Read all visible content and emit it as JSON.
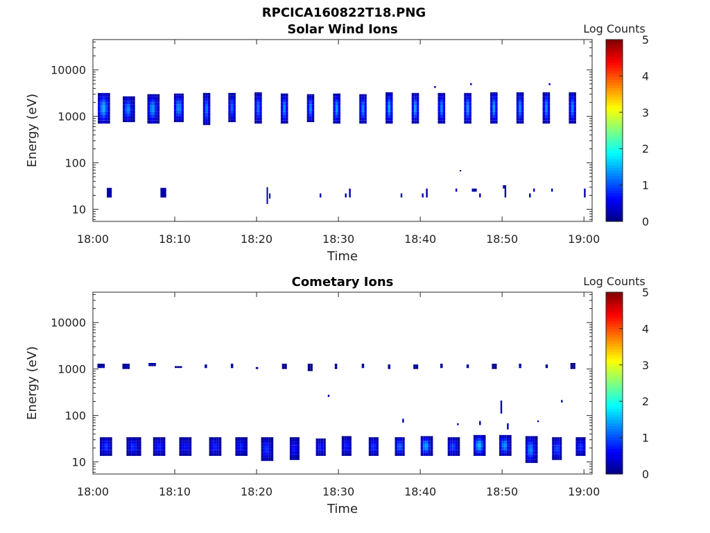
{
  "figure_title": "RPCICA160822T18.PNG",
  "chart_data": [
    {
      "type": "heatmap",
      "title": "Solar Wind Ions",
      "xlabel": "Time",
      "ylabel": "Energy (eV)",
      "x_ticks": [
        "18:00",
        "18:10",
        "18:20",
        "18:30",
        "18:40",
        "18:50",
        "19:00"
      ],
      "x_range_minutes": [
        0,
        61
      ],
      "y_scale": "log",
      "y_ticks": [
        "10",
        "100",
        "1000",
        "10000"
      ],
      "y_range_eV": [
        5.5,
        45000
      ],
      "colorbar_label": "Log Counts",
      "colorbar_ticks": [
        "0",
        "1",
        "2",
        "3",
        "4",
        "5"
      ],
      "colormap": "jet",
      "value_range": [
        0,
        5
      ],
      "blobs": [
        {
          "t": 1.3,
          "w": 1.4,
          "e_lo": 700,
          "e_hi": 3200,
          "peak": 1.5
        },
        {
          "t": 4.3,
          "w": 1.3,
          "e_lo": 750,
          "e_hi": 2700,
          "peak": 1.3
        },
        {
          "t": 7.3,
          "w": 1.3,
          "e_lo": 700,
          "e_hi": 3000,
          "peak": 1.4
        },
        {
          "t": 10.5,
          "w": 1.2,
          "e_lo": 750,
          "e_hi": 3100,
          "peak": 1.4
        },
        {
          "t": 13.9,
          "w": 0.9,
          "e_lo": 650,
          "e_hi": 3200,
          "peak": 1.2
        },
        {
          "t": 17.0,
          "w": 0.9,
          "e_lo": 750,
          "e_hi": 3200,
          "peak": 1.1
        },
        {
          "t": 20.2,
          "w": 0.9,
          "e_lo": 700,
          "e_hi": 3300,
          "peak": 1.2
        },
        {
          "t": 23.4,
          "w": 0.9,
          "e_lo": 700,
          "e_hi": 3100,
          "peak": 1.3
        },
        {
          "t": 26.6,
          "w": 0.9,
          "e_lo": 750,
          "e_hi": 3000,
          "peak": 1.3
        },
        {
          "t": 29.8,
          "w": 0.9,
          "e_lo": 700,
          "e_hi": 3100,
          "peak": 1.4
        },
        {
          "t": 33.0,
          "w": 0.9,
          "e_lo": 700,
          "e_hi": 3000,
          "peak": 1.3
        },
        {
          "t": 36.2,
          "w": 0.9,
          "e_lo": 700,
          "e_hi": 3300,
          "peak": 1.5
        },
        {
          "t": 39.4,
          "w": 0.9,
          "e_lo": 700,
          "e_hi": 3200,
          "peak": 1.4
        },
        {
          "t": 42.6,
          "w": 0.9,
          "e_lo": 700,
          "e_hi": 3200,
          "peak": 1.3
        },
        {
          "t": 45.8,
          "w": 0.9,
          "e_lo": 700,
          "e_hi": 3200,
          "peak": 1.4
        },
        {
          "t": 49.0,
          "w": 0.9,
          "e_lo": 700,
          "e_hi": 3300,
          "peak": 1.4
        },
        {
          "t": 52.2,
          "w": 0.9,
          "e_lo": 700,
          "e_hi": 3300,
          "peak": 1.3
        },
        {
          "t": 55.4,
          "w": 0.9,
          "e_lo": 700,
          "e_hi": 3300,
          "peak": 1.3
        },
        {
          "t": 58.6,
          "w": 0.9,
          "e_lo": 700,
          "e_hi": 3300,
          "peak": 1.3
        }
      ],
      "specks": [
        {
          "t": 2.0,
          "w": 0.6,
          "e_lo": 18,
          "e_hi": 29,
          "v": 0.2
        },
        {
          "t": 8.6,
          "w": 0.7,
          "e_lo": 18,
          "e_hi": 29,
          "v": 0.2
        },
        {
          "t": 21.3,
          "w": 0.15,
          "e_lo": 13,
          "e_hi": 30,
          "v": 0.2
        },
        {
          "t": 21.6,
          "w": 0.15,
          "e_lo": 17,
          "e_hi": 22,
          "v": 0.2
        },
        {
          "t": 27.8,
          "w": 0.2,
          "e_lo": 18,
          "e_hi": 22,
          "v": 0.2
        },
        {
          "t": 30.9,
          "w": 0.2,
          "e_lo": 18,
          "e_hi": 22,
          "v": 0.2
        },
        {
          "t": 31.4,
          "w": 0.2,
          "e_lo": 18,
          "e_hi": 28,
          "v": 0.2
        },
        {
          "t": 37.7,
          "w": 0.2,
          "e_lo": 18,
          "e_hi": 22,
          "v": 0.2
        },
        {
          "t": 40.3,
          "w": 0.2,
          "e_lo": 18,
          "e_hi": 22,
          "v": 0.2
        },
        {
          "t": 40.8,
          "w": 0.2,
          "e_lo": 18,
          "e_hi": 28,
          "v": 0.2
        },
        {
          "t": 41.8,
          "w": 0.2,
          "e_lo": 4100,
          "e_hi": 4500,
          "v": 0.3
        },
        {
          "t": 44.4,
          "w": 0.2,
          "e_lo": 24,
          "e_hi": 28,
          "v": 0.2
        },
        {
          "t": 44.9,
          "w": 0.15,
          "e_lo": 66,
          "e_hi": 70,
          "v": 0.2
        },
        {
          "t": 46.6,
          "w": 0.6,
          "e_lo": 24,
          "e_hi": 28,
          "v": 0.2
        },
        {
          "t": 47.3,
          "w": 0.2,
          "e_lo": 18,
          "e_hi": 22,
          "v": 0.2
        },
        {
          "t": 46.2,
          "w": 0.2,
          "e_lo": 4700,
          "e_hi": 5200,
          "v": 0.3
        },
        {
          "t": 50.3,
          "w": 0.4,
          "e_lo": 28,
          "e_hi": 33,
          "v": 0.2
        },
        {
          "t": 50.4,
          "w": 0.2,
          "e_lo": 18,
          "e_hi": 28,
          "v": 0.2
        },
        {
          "t": 53.4,
          "w": 0.2,
          "e_lo": 18,
          "e_hi": 22,
          "v": 0.2
        },
        {
          "t": 53.9,
          "w": 0.2,
          "e_lo": 24,
          "e_hi": 28,
          "v": 0.2
        },
        {
          "t": 56.1,
          "w": 0.2,
          "e_lo": 24,
          "e_hi": 28,
          "v": 0.2
        },
        {
          "t": 55.8,
          "w": 0.2,
          "e_lo": 4700,
          "e_hi": 5200,
          "v": 0.3
        },
        {
          "t": 60.1,
          "w": 0.2,
          "e_lo": 18,
          "e_hi": 28,
          "v": 0.2
        }
      ]
    },
    {
      "type": "heatmap",
      "title": "Cometary Ions",
      "xlabel": "Time",
      "ylabel": "Energy (eV)",
      "x_ticks": [
        "18:00",
        "18:10",
        "18:20",
        "18:30",
        "18:40",
        "18:50",
        "19:00"
      ],
      "x_range_minutes": [
        0,
        61
      ],
      "y_scale": "log",
      "y_ticks": [
        "10",
        "100",
        "1000",
        "10000"
      ],
      "y_range_eV": [
        5.5,
        45000
      ],
      "colorbar_label": "Log Counts",
      "colorbar_ticks": [
        "0",
        "1",
        "2",
        "3",
        "4",
        "5"
      ],
      "colormap": "jet",
      "value_range": [
        0,
        5
      ],
      "blobs": [
        {
          "t": 1.6,
          "w": 1.5,
          "e_lo": 13.5,
          "e_hi": 34,
          "peak": 0.9
        },
        {
          "t": 4.9,
          "w": 1.6,
          "e_lo": 13.5,
          "e_hi": 34,
          "peak": 0.9
        },
        {
          "t": 8.1,
          "w": 1.5,
          "e_lo": 13.5,
          "e_hi": 34,
          "peak": 0.8
        },
        {
          "t": 11.3,
          "w": 1.5,
          "e_lo": 13.5,
          "e_hi": 34,
          "peak": 0.7
        },
        {
          "t": 14.9,
          "w": 1.4,
          "e_lo": 13.5,
          "e_hi": 34,
          "peak": 0.8
        },
        {
          "t": 18.1,
          "w": 1.4,
          "e_lo": 13.5,
          "e_hi": 34,
          "peak": 0.8
        },
        {
          "t": 21.2,
          "w": 1.3,
          "e_lo": 10.5,
          "e_hi": 34,
          "peak": 0.9
        },
        {
          "t": 24.6,
          "w": 1.1,
          "e_lo": 11,
          "e_hi": 34,
          "peak": 0.7
        },
        {
          "t": 27.8,
          "w": 1.1,
          "e_lo": 13.5,
          "e_hi": 32,
          "peak": 0.8
        },
        {
          "t": 31.0,
          "w": 1.2,
          "e_lo": 13.5,
          "e_hi": 36,
          "peak": 0.8
        },
        {
          "t": 34.3,
          "w": 1.2,
          "e_lo": 13.5,
          "e_hi": 34,
          "peak": 0.9
        },
        {
          "t": 37.5,
          "w": 1.2,
          "e_lo": 13.5,
          "e_hi": 34,
          "peak": 1.2
        },
        {
          "t": 40.7,
          "w": 1.3,
          "e_lo": 13.5,
          "e_hi": 36,
          "peak": 1.5
        },
        {
          "t": 44.0,
          "w": 1.3,
          "e_lo": 13.5,
          "e_hi": 34,
          "peak": 1.0
        },
        {
          "t": 47.2,
          "w": 1.4,
          "e_lo": 13.5,
          "e_hi": 38,
          "peak": 1.6
        },
        {
          "t": 50.3,
          "w": 1.3,
          "e_lo": 13.5,
          "e_hi": 38,
          "peak": 1.4
        },
        {
          "t": 53.5,
          "w": 1.3,
          "e_lo": 9.5,
          "e_hi": 36,
          "peak": 1.3
        },
        {
          "t": 56.7,
          "w": 1.2,
          "e_lo": 11,
          "e_hi": 34,
          "peak": 1.0
        },
        {
          "t": 59.6,
          "w": 1.2,
          "e_lo": 13.5,
          "e_hi": 34,
          "peak": 0.9
        },
        {
          "t": 1.0,
          "w": 0.9,
          "e_lo": 1050,
          "e_hi": 1300,
          "peak": 0.3
        },
        {
          "t": 4.0,
          "w": 0.8,
          "e_lo": 1000,
          "e_hi": 1300,
          "peak": 0.3
        },
        {
          "t": 7.2,
          "w": 0.8,
          "e_lo": 1150,
          "e_hi": 1350,
          "peak": 0.3
        },
        {
          "t": 10.4,
          "w": 0.8,
          "e_lo": 1050,
          "e_hi": 1150,
          "peak": 0.2
        },
        {
          "t": 13.8,
          "w": 0.3,
          "e_lo": 1050,
          "e_hi": 1250,
          "peak": 0.2
        },
        {
          "t": 17.0,
          "w": 0.3,
          "e_lo": 1050,
          "e_hi": 1300,
          "peak": 0.2
        },
        {
          "t": 20.0,
          "w": 0.2,
          "e_lo": 1000,
          "e_hi": 1100,
          "peak": 0.2
        },
        {
          "t": 23.3,
          "w": 0.4,
          "e_lo": 1000,
          "e_hi": 1300,
          "peak": 0.2
        },
        {
          "t": 26.5,
          "w": 0.5,
          "e_lo": 900,
          "e_hi": 1300,
          "peak": 0.2
        },
        {
          "t": 29.7,
          "w": 0.3,
          "e_lo": 1000,
          "e_hi": 1300,
          "peak": 0.2
        },
        {
          "t": 33.0,
          "w": 0.3,
          "e_lo": 1050,
          "e_hi": 1300,
          "peak": 0.2
        },
        {
          "t": 36.2,
          "w": 0.3,
          "e_lo": 1000,
          "e_hi": 1250,
          "peak": 0.2
        },
        {
          "t": 39.4,
          "w": 0.5,
          "e_lo": 1000,
          "e_hi": 1250,
          "peak": 0.2
        },
        {
          "t": 42.6,
          "w": 0.3,
          "e_lo": 1050,
          "e_hi": 1300,
          "peak": 0.2
        },
        {
          "t": 45.8,
          "w": 0.3,
          "e_lo": 1050,
          "e_hi": 1250,
          "peak": 0.2
        },
        {
          "t": 49.0,
          "w": 0.5,
          "e_lo": 1000,
          "e_hi": 1300,
          "peak": 0.2
        },
        {
          "t": 52.2,
          "w": 0.3,
          "e_lo": 1050,
          "e_hi": 1300,
          "peak": 0.2
        },
        {
          "t": 55.4,
          "w": 0.2,
          "e_lo": 1050,
          "e_hi": 1250,
          "peak": 0.2
        },
        {
          "t": 58.6,
          "w": 0.5,
          "e_lo": 1000,
          "e_hi": 1350,
          "peak": 0.2
        }
      ],
      "specks": [
        {
          "t": 28.8,
          "w": 0.2,
          "e_lo": 250,
          "e_hi": 280,
          "v": 0.2
        },
        {
          "t": 37.9,
          "w": 0.2,
          "e_lo": 70,
          "e_hi": 85,
          "v": 0.2
        },
        {
          "t": 44.6,
          "w": 0.2,
          "e_lo": 62,
          "e_hi": 68,
          "v": 0.2
        },
        {
          "t": 47.3,
          "w": 0.2,
          "e_lo": 62,
          "e_hi": 76,
          "v": 0.2
        },
        {
          "t": 49.9,
          "w": 0.2,
          "e_lo": 110,
          "e_hi": 210,
          "v": 0.3
        },
        {
          "t": 50.7,
          "w": 0.2,
          "e_lo": 50,
          "e_hi": 68,
          "v": 0.2
        },
        {
          "t": 54.4,
          "w": 0.2,
          "e_lo": 72,
          "e_hi": 78,
          "v": 0.2
        },
        {
          "t": 57.3,
          "w": 0.2,
          "e_lo": 190,
          "e_hi": 215,
          "v": 0.2
        }
      ]
    }
  ]
}
